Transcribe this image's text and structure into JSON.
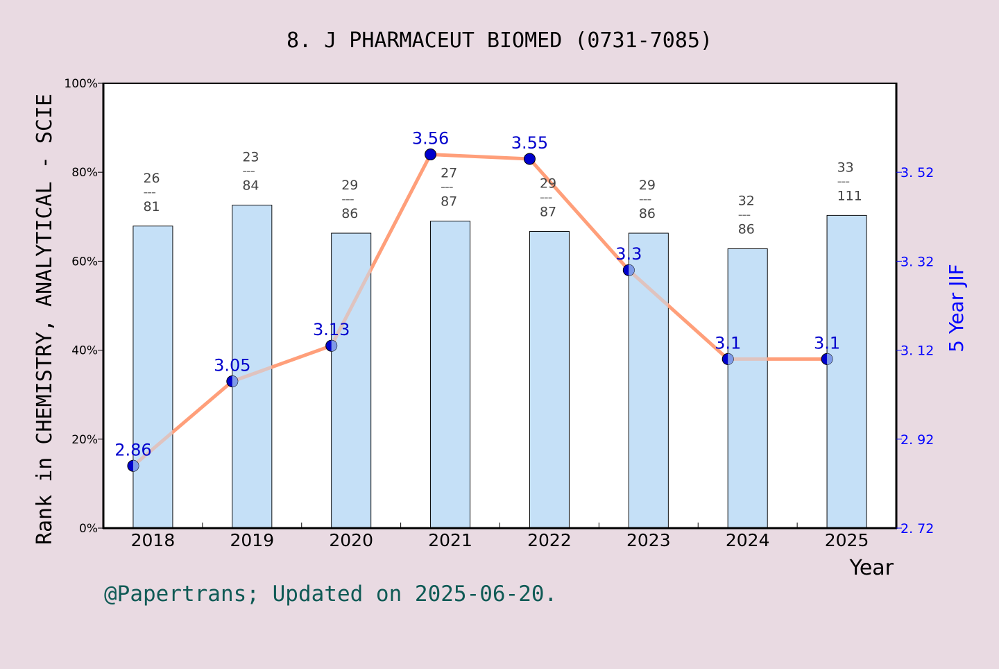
{
  "colors": {
    "background": "#e9dae2",
    "plot_background": "#ffffff",
    "bar_fill": "#c5e0f7",
    "bar_stroke": "#000000",
    "line": "#ff9f7a",
    "line_overlap": "#c8c8d8",
    "marker": "#0000cc",
    "marker_overlap": "#7f9be8",
    "jif_label": "#0000cc",
    "right_axis": "#0000ff",
    "rank_label": "#444444",
    "footer": "#0f5a55",
    "axis": "#000000"
  },
  "chart_data": {
    "type": "bar+line",
    "title": "8. J PHARMACEUT BIOMED (0731-7085)",
    "xlabel": "Year",
    "ylabel_left": "Rank in CHEMISTRY, ANALYTICAL - SCIE",
    "ylabel_right": "5 Year JIF",
    "categories": [
      "2018",
      "2019",
      "2020",
      "2021",
      "2022",
      "2023",
      "2024",
      "2025"
    ],
    "left_axis": {
      "range": [
        0,
        100
      ],
      "ticks": [
        "0%",
        "20%",
        "40%",
        "60%",
        "80%",
        "100%"
      ],
      "tick_values": [
        0,
        20,
        40,
        60,
        80,
        100
      ]
    },
    "right_axis": {
      "range": [
        2.72,
        3.72
      ],
      "ticks": [
        "2.72",
        "2.92",
        "3.12",
        "3.32",
        "3.52"
      ],
      "tick_values": [
        2.72,
        2.92,
        3.12,
        3.32,
        3.52
      ]
    },
    "series": [
      {
        "name": "Rank percentile (bars)",
        "type": "bar",
        "axis": "left",
        "values": [
          67.9,
          72.6,
          66.3,
          69.0,
          66.7,
          66.3,
          62.8,
          70.3
        ],
        "rank": [
          26,
          23,
          29,
          27,
          29,
          29,
          32,
          33
        ],
        "total": [
          81,
          84,
          86,
          87,
          87,
          86,
          86,
          111
        ]
      },
      {
        "name": "5 Year JIF",
        "type": "line",
        "axis": "right",
        "values": [
          2.86,
          3.05,
          3.13,
          3.56,
          3.55,
          3.3,
          3.1,
          3.1
        ],
        "labels": [
          "2.86",
          "3.05",
          "3.13",
          "3.56",
          "3.55",
          "3.3",
          "3.1",
          "3.1"
        ]
      }
    ],
    "bar_label_separator": "---",
    "grid": false,
    "legend": null
  },
  "footer": {
    "text": "@Papertrans; Updated on 2025-06-20."
  }
}
